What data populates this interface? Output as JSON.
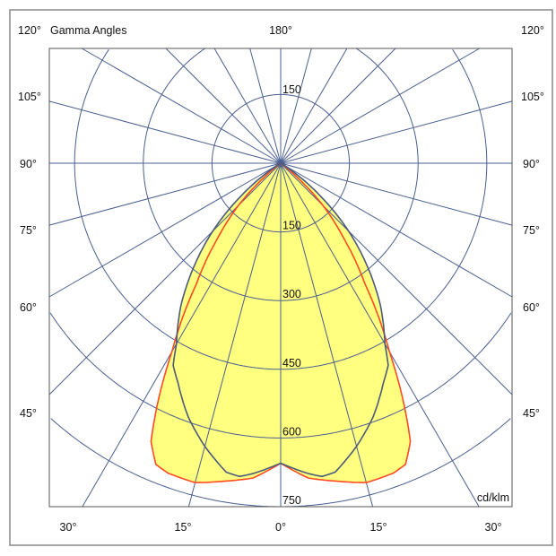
{
  "chart_data": {
    "type": "polar",
    "title": "Gamma Angles",
    "unit": "cd/klm",
    "radial_ticks": [
      150,
      300,
      450,
      600,
      750
    ],
    "radial_max": 750,
    "ray_step_deg": 15,
    "angle_labels": {
      "top": "180°",
      "left": [
        "120°",
        "105°",
        "90°",
        "75°",
        "60°",
        "45°"
      ],
      "right": [
        "120°",
        "105°",
        "90°",
        "75°",
        "60°",
        "45°"
      ],
      "bottom": [
        "30°",
        "15°",
        "0°",
        "15°",
        "30°"
      ]
    },
    "fill_color": "#ffff80",
    "grid_color": "#4a5f91",
    "series": [
      {
        "color": "#ff4a22",
        "gamma": [
          0,
          5,
          10,
          15,
          20,
          22.5,
          25,
          27,
          30,
          35,
          40,
          45,
          50,
          55,
          90
        ],
        "intensity": [
          655,
          690,
          705,
          722,
          720,
          712,
          670,
          595,
          475,
          320,
          215,
          130,
          40,
          0,
          0
        ]
      },
      {
        "color": "#4a5a7a",
        "gamma": [
          0,
          5,
          7.5,
          10,
          15,
          20,
          25,
          28,
          30,
          35,
          40,
          45,
          50,
          55,
          60,
          90
        ],
        "intensity": [
          655,
          680,
          690,
          685,
          640,
          590,
          530,
          500,
          455,
          380,
          295,
          210,
          120,
          40,
          0,
          0
        ]
      }
    ]
  }
}
